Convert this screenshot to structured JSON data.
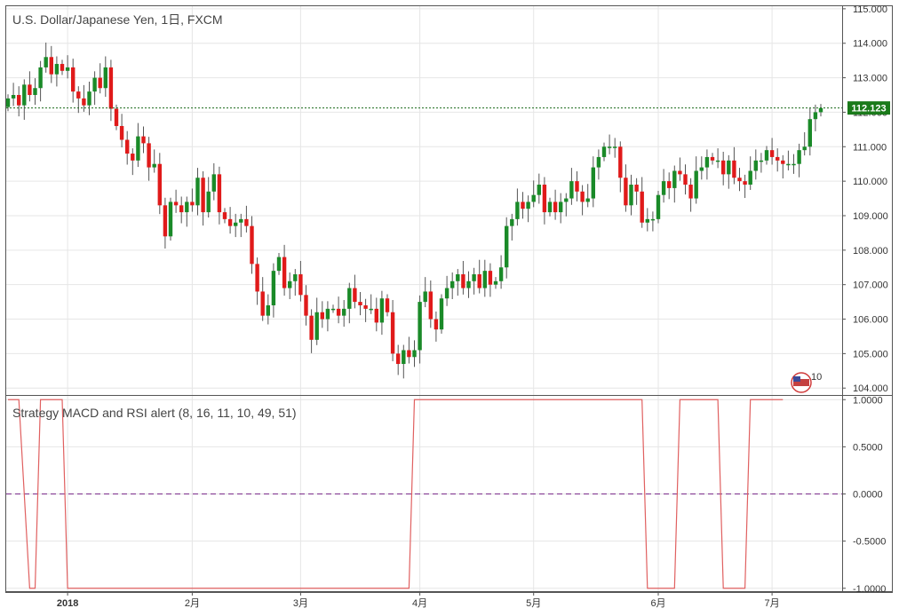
{
  "main_title": "U.S. Dollar/Japanese Yen, 1日, FXCM",
  "indicator_title": "Strategy MACD and RSI alert (8, 16, 11, 10, 49, 51)",
  "last_price_label": "112.123",
  "flag_badge_text": "10",
  "colors": {
    "up": "#1a8a28",
    "down": "#e01a1a",
    "wick": "#555555",
    "grid": "#e6e6e6",
    "price_line": "#1a6a1a",
    "indicator_line": "#e06060",
    "zero_line": "#7a2a8a",
    "price_tag_bg": "#1a7a1a",
    "border": "#555555"
  },
  "chart_data": [
    {
      "type": "candlestick",
      "title": "U.S. Dollar/Japanese Yen, 1日, FXCM",
      "ylim": [
        103.8,
        115.1
      ],
      "yticks": [
        "115.000",
        "114.000",
        "113.000",
        "112.000",
        "111.000",
        "110.000",
        "109.000",
        "108.000",
        "107.000",
        "106.000",
        "105.000",
        "104.000"
      ],
      "xticks": [
        {
          "label": "2018",
          "bar": 11,
          "bold": true
        },
        {
          "label": "2月",
          "bar": 34,
          "bold": false
        },
        {
          "label": "3月",
          "bar": 54,
          "bold": false
        },
        {
          "label": "4月",
          "bar": 76,
          "bold": false
        },
        {
          "label": "5月",
          "bar": 97,
          "bold": false
        },
        {
          "label": "6月",
          "bar": 120,
          "bold": false
        },
        {
          "label": "7月",
          "bar": 141,
          "bold": false
        }
      ],
      "last_price": 112.123,
      "ohlc_close": [
        112.4,
        112.5,
        112.2,
        112.8,
        112.5,
        112.7,
        113.3,
        113.6,
        113.1,
        113.4,
        113.2,
        113.3,
        112.6,
        112.4,
        112.2,
        112.6,
        113.0,
        112.7,
        113.3,
        112.1,
        111.6,
        111.2,
        110.8,
        110.6,
        111.3,
        111.1,
        110.4,
        110.5,
        109.3,
        108.4,
        109.4,
        109.3,
        109.1,
        109.4,
        109.3,
        110.1,
        109.1,
        109.7,
        110.2,
        109.1,
        108.9,
        108.7,
        108.8,
        108.9,
        108.7,
        107.6,
        106.8,
        106.1,
        106.4,
        107.4,
        107.8,
        106.9,
        107.1,
        107.3,
        106.7,
        106.1,
        105.4,
        106.2,
        106.0,
        106.3,
        106.3,
        106.1,
        106.3,
        106.9,
        106.5,
        106.4,
        106.3,
        106.3,
        105.9,
        106.6,
        106.2,
        105.0,
        104.7,
        105.1,
        104.9,
        105.1,
        106.5,
        106.8,
        106.0,
        105.7,
        106.6,
        106.9,
        107.1,
        107.3,
        106.9,
        107.1,
        107.3,
        106.9,
        107.4,
        107.0,
        107.1,
        107.5,
        108.7,
        108.9,
        109.4,
        109.2,
        109.4,
        109.6,
        109.9,
        109.1,
        109.4,
        109.1,
        109.4,
        109.5,
        110.0,
        109.7,
        109.4,
        109.5,
        110.4,
        110.7,
        111.0,
        111.0,
        111.0,
        110.1,
        109.3,
        109.9,
        109.7,
        108.8,
        108.9,
        108.9,
        109.6,
        110.0,
        109.8,
        110.3,
        110.2,
        109.9,
        109.5,
        110.3,
        110.4,
        110.7,
        110.6,
        110.6,
        110.2,
        110.6,
        110.1,
        110.0,
        109.9,
        110.3,
        110.6,
        110.6,
        110.9,
        110.7,
        110.6,
        110.5,
        110.5,
        110.5,
        110.9,
        111.0,
        111.8,
        112.0,
        112.12
      ]
    },
    {
      "type": "line",
      "title": "Strategy MACD and RSI alert (8, 16, 11, 10, 49, 51)",
      "ylim": [
        -1.04,
        1.04
      ],
      "yticks": [
        "1.0000",
        "0.5000",
        "0.0000",
        "-0.5000",
        "-1.0000"
      ],
      "zero_line": 0,
      "x": [
        0,
        2,
        4,
        5,
        6,
        10,
        11,
        74,
        75,
        117,
        118,
        123,
        124,
        131,
        132,
        136,
        137,
        143
      ],
      "values": [
        1,
        1,
        -1,
        -1,
        1,
        1,
        -1,
        -1,
        1,
        1,
        -1,
        -1,
        1,
        1,
        -1,
        -1,
        1,
        1
      ]
    }
  ]
}
